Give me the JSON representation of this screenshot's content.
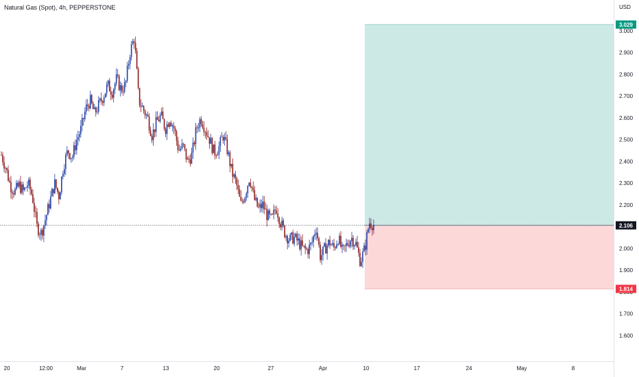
{
  "chart_data": {
    "type": "candlestick",
    "title": "Natural Gas (Spot), 4h, PEPPERSTONE",
    "currency": "USD",
    "y_ticks": [
      1.6,
      1.7,
      1.8,
      1.9,
      2.0,
      2.1,
      2.2,
      2.3,
      2.4,
      2.5,
      2.6,
      2.7,
      2.8,
      2.9,
      3.0
    ],
    "y_tick_labels": [
      "1.600",
      "1.700",
      "1.800",
      "1.900",
      "2.000",
      "2.100",
      "2.200",
      "2.300",
      "2.400",
      "2.500",
      "2.600",
      "2.700",
      "2.800",
      "2.900",
      "3.000"
    ],
    "x_labels": [
      "20",
      "12:00",
      "Mar",
      "7",
      "13",
      "20",
      "27",
      "Apr",
      "10",
      "17",
      "24",
      "May",
      "8"
    ],
    "colors": {
      "up": "#1e3fa8",
      "down": "#8b1a1a",
      "profit_zone": "#cde9e6",
      "loss_zone": "#fdd8d8",
      "target_badge": "#089981",
      "stop_badge": "#f23645",
      "price_badge": "#131722",
      "grid_text": "#131722"
    },
    "price_line": {
      "value": 2.106,
      "label": "2.106"
    },
    "position": {
      "type": "long",
      "entry": 2.106,
      "target": 3.029,
      "target_label": "3.029",
      "stop": 1.814,
      "stop_label": "1.814"
    },
    "path": [
      2.43,
      2.37,
      2.29,
      2.26,
      2.29,
      2.26,
      2.3,
      2.24,
      2.1,
      2.07,
      2.14,
      2.22,
      2.3,
      2.24,
      2.38,
      2.45,
      2.42,
      2.5,
      2.55,
      2.64,
      2.68,
      2.62,
      2.66,
      2.7,
      2.75,
      2.72,
      2.78,
      2.73,
      2.75,
      2.9,
      2.97,
      2.68,
      2.64,
      2.6,
      2.52,
      2.58,
      2.61,
      2.55,
      2.6,
      2.55,
      2.45,
      2.47,
      2.4,
      2.43,
      2.55,
      2.6,
      2.55,
      2.5,
      2.44,
      2.46,
      2.52,
      2.45,
      2.35,
      2.3,
      2.2,
      2.25,
      2.33,
      2.23,
      2.18,
      2.2,
      2.15,
      2.13,
      2.19,
      2.12,
      2.07,
      2.04,
      2.05,
      2.03,
      2.0,
      1.99,
      2.02,
      2.1,
      1.96,
      2.0,
      2.03,
      2.0,
      2.05,
      1.98,
      2.02,
      2.05,
      2.02,
      1.94,
      2.0,
      2.12,
      2.11
    ]
  }
}
